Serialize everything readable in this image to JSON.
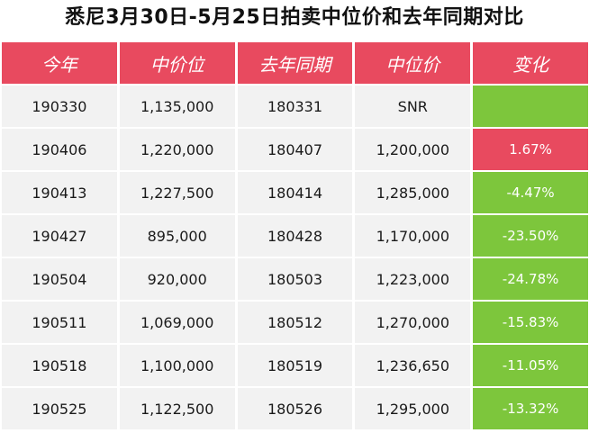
{
  "title": "悉尼3月30日-5月25日拍卖中位价和去年同期对比",
  "colors": {
    "header": "#e84a5f",
    "increase": "#e84a5f",
    "decrease": "#7dc63c",
    "cell": "#f2f2f2"
  },
  "chart_data": {
    "type": "table",
    "title": "悉尼3月30日-5月25日拍卖中位价和去年同期对比",
    "columns": [
      "今年",
      "中价位",
      "去年同期",
      "中位价",
      "变化"
    ],
    "rows": [
      [
        "190330",
        "1,135,000",
        "180331",
        "SNR",
        ""
      ],
      [
        "190406",
        "1,220,000",
        "180407",
        "1,200,000",
        "1.67%"
      ],
      [
        "190413",
        "1,227,500",
        "180414",
        "1,285,000",
        "-4.47%"
      ],
      [
        "190427",
        "895,000",
        "180428",
        "1,170,000",
        "-23.50%"
      ],
      [
        "190504",
        "920,000",
        "180503",
        "1,223,000",
        "-24.78%"
      ],
      [
        "190511",
        "1,069,000",
        "180512",
        "1,270,000",
        "-15.83%"
      ],
      [
        "190518",
        "1,100,000",
        "180519",
        "1,236,650",
        "-11.05%"
      ],
      [
        "190525",
        "1,122,500",
        "180526",
        "1,295,000",
        "-13.32%"
      ]
    ]
  }
}
